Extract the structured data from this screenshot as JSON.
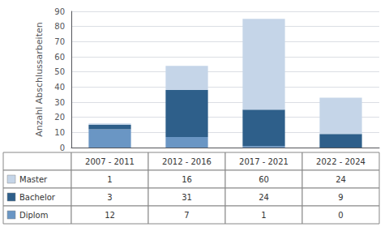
{
  "chart_data": {
    "type": "bar",
    "ylabel": "Anzahl Abschlussarbeiten",
    "categories": [
      "2007 - 2011",
      "2012 - 2016",
      "2017 - 2021",
      "2022 - 2024"
    ],
    "series": [
      {
        "name": "Diplom",
        "color": "#6a96c4",
        "values": [
          12,
          7,
          1,
          0
        ]
      },
      {
        "name": "Bachelor",
        "color": "#2e5f8a",
        "values": [
          3,
          31,
          24,
          9
        ]
      },
      {
        "name": "Master",
        "color": "#c5d5e8",
        "values": [
          1,
          16,
          60,
          24
        ]
      }
    ],
    "stacked": true,
    "ylim": [
      0,
      90
    ],
    "yticks": [
      0,
      10,
      20,
      30,
      40,
      50,
      60,
      70,
      80,
      90
    ],
    "grid": true,
    "legend": "bottom"
  }
}
